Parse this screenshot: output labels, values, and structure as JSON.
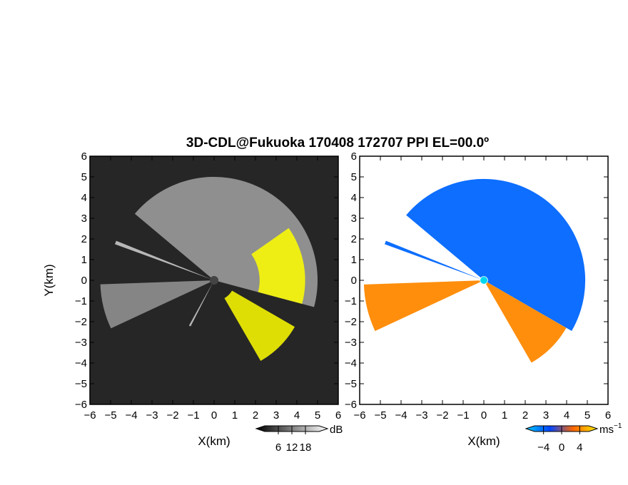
{
  "chart_data": {
    "title": "3D-CDL@Fukuoka 170408 172707 PPI EL=00.0º",
    "panels": [
      {
        "id": "reflectivity",
        "type": "heatmap",
        "xlabel": "X(km)",
        "ylabel": "Y(km)",
        "xlim": [
          -6,
          6
        ],
        "ylim": [
          -6,
          6
        ],
        "xticks": [
          "−6",
          "−5",
          "−4",
          "−3",
          "−2",
          "−1",
          "0",
          "1",
          "2",
          "3",
          "4",
          "5",
          "6"
        ],
        "yticks": [
          "6",
          "5",
          "4",
          "3",
          "2",
          "1",
          "0",
          "−1",
          "−2",
          "−3",
          "−4",
          "−5",
          "−6"
        ],
        "background_color": "#262626",
        "saturated_color": "#ffff00",
        "colorbar": {
          "unit": "dB",
          "ticks": [
            {
              "label": "6",
              "value": 6
            },
            {
              "label": "12",
              "value": 12
            },
            {
              "label": "18",
              "value": 18
            }
          ],
          "range": [
            0,
            24
          ],
          "gradient": [
            "#000000",
            "#ffffff"
          ],
          "over_color": "#ffff00"
        },
        "sectors": [
          {
            "az_start": -50,
            "az_end": 105,
            "r_inner": 0.2,
            "r_outer": 5.0,
            "value": 14
          },
          {
            "az_start": 245,
            "az_end": 268,
            "r_inner": 0.2,
            "r_outer": 5.5,
            "value": 13
          },
          {
            "az_start": 290,
            "az_end": 292,
            "r_inner": 0.2,
            "r_outer": 5.1,
            "value": 18
          },
          {
            "az_start": 207,
            "az_end": 209,
            "r_inner": 0.2,
            "r_outer": 2.5,
            "value": 18
          }
        ],
        "saturated_regions": [
          {
            "az_start": 55,
            "az_end": 105,
            "r_inner": 2.2,
            "r_outer": 4.4
          },
          {
            "az_start": 120,
            "az_end": 150,
            "r_inner": 1.0,
            "r_outer": 4.5
          }
        ]
      },
      {
        "id": "velocity",
        "type": "heatmap",
        "xlabel": "X(km)",
        "xlim": [
          -6,
          6
        ],
        "ylim": [
          -6,
          6
        ],
        "xticks": [
          "−6",
          "−5",
          "−4",
          "−3",
          "−2",
          "−1",
          "0",
          "1",
          "2",
          "3",
          "4",
          "5",
          "6"
        ],
        "yticks": [
          "6",
          "5",
          "4",
          "3",
          "2",
          "1",
          "0",
          "−1",
          "−2",
          "−3",
          "−4",
          "−5",
          "−6"
        ],
        "background_color": "#ffffff",
        "colorbar": {
          "unit": "ms",
          "unit_exponent": "−1",
          "ticks": [
            {
              "label": "−4",
              "value": -4
            },
            {
              "label": "0",
              "value": 0
            },
            {
              "label": "4",
              "value": 4
            }
          ],
          "range": [
            -6,
            6
          ],
          "gradient": [
            "#00ccff",
            "#0044ff",
            "#ff6600",
            "#ffee00"
          ]
        },
        "sectors": [
          {
            "az_start": -50,
            "az_end": 120,
            "r_inner": 0.2,
            "r_outer": 4.9,
            "value": -3
          },
          {
            "az_start": 120,
            "az_end": 150,
            "r_inner": 0.2,
            "r_outer": 4.6,
            "value": 3
          },
          {
            "az_start": 245,
            "az_end": 268,
            "r_inner": 0.2,
            "r_outer": 5.8,
            "value": 3
          },
          {
            "az_start": 290,
            "az_end": 292,
            "r_inner": 0.2,
            "r_outer": 5.1,
            "value": -3
          }
        ]
      }
    ]
  }
}
